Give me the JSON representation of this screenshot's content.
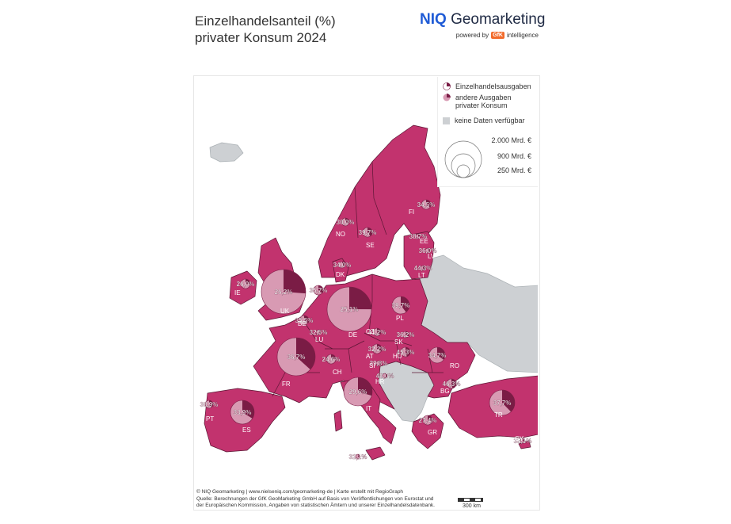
{
  "title": {
    "line1": "Einzelhandelsanteil (%)",
    "line2": "privater Konsum 2024"
  },
  "brand": {
    "niq": "NIQ",
    "name": "Geomarketing",
    "powered_by": "powered by",
    "gfk": "GfK",
    "intelligence": "intelligence"
  },
  "legend": {
    "retail": "Einzelhandelsausgaben",
    "other_line1": "andere Ausgaben",
    "other_line2": "privater Konsum",
    "no_data": "keine Daten verfügbar",
    "size1": "2.000 Mrd. €",
    "size2": "900 Mrd. €",
    "size3": "250 Mrd. €"
  },
  "colors": {
    "land": "#c2336e",
    "pie_other": "#d89ab3",
    "pie_retail": "#7a1c45",
    "nodata": "#cdd0d3",
    "border": "#5c1735"
  },
  "countries": [
    {
      "code": "FI",
      "pct": "34,5%"
    },
    {
      "code": "NO",
      "pct": "30,0%"
    },
    {
      "code": "SE",
      "pct": "39,7%"
    },
    {
      "code": "EE",
      "pct": "38,7%"
    },
    {
      "code": "LV",
      "pct": "36,0%"
    },
    {
      "code": "LT",
      "pct": "44,3%"
    },
    {
      "code": "DK",
      "pct": "34,0%"
    },
    {
      "code": "IE",
      "pct": "26,0%"
    },
    {
      "code": "UK",
      "pct": "26,2%"
    },
    {
      "code": "NL",
      "pct": "35,7%"
    },
    {
      "code": "DE",
      "pct": "25,1%"
    },
    {
      "code": "PL",
      "pct": "39,7%"
    },
    {
      "code": "BE",
      "pct": "35,5%"
    },
    {
      "code": "LU",
      "pct": "32,5%"
    },
    {
      "code": "CZ",
      "pct": "41,2%"
    },
    {
      "code": "SK",
      "pct": "36,2%"
    },
    {
      "code": "FR",
      "pct": "36,7%"
    },
    {
      "code": "CH",
      "pct": "24,6%"
    },
    {
      "code": "AT",
      "pct": "32,2%"
    },
    {
      "code": "HU",
      "pct": "45,3%"
    },
    {
      "code": "SI",
      "pct": "39,8%"
    },
    {
      "code": "HR",
      "pct": "48,0%"
    },
    {
      "code": "RO",
      "pct": "34,7%"
    },
    {
      "code": "BG",
      "pct": "46,3%"
    },
    {
      "code": "IT",
      "pct": "29,6%"
    },
    {
      "code": "PT",
      "pct": "38,9%"
    },
    {
      "code": "ES",
      "pct": "33,9%"
    },
    {
      "code": "GR",
      "pct": "27,4%"
    },
    {
      "code": "TR",
      "pct": "37,7%"
    },
    {
      "code": "CY",
      "pct": "35,1%"
    },
    {
      "code": "MT",
      "pct": "32,1%"
    }
  ],
  "footer": {
    "line1": "© NIQ Geomarketing | www.nielseniq.com/geomarketing-de | Karte erstellt mit RegioGraph",
    "line2": "Quelle: Berechnungen der GfK GeoMarketing GmbH auf Basis von Veröffentlichungen von Eurostat und",
    "line3": "der Europäischen Kommission, Angaben von statistischen Ämtern und unserer Einzelhandelsdatenbank."
  },
  "scale": "300 km"
}
